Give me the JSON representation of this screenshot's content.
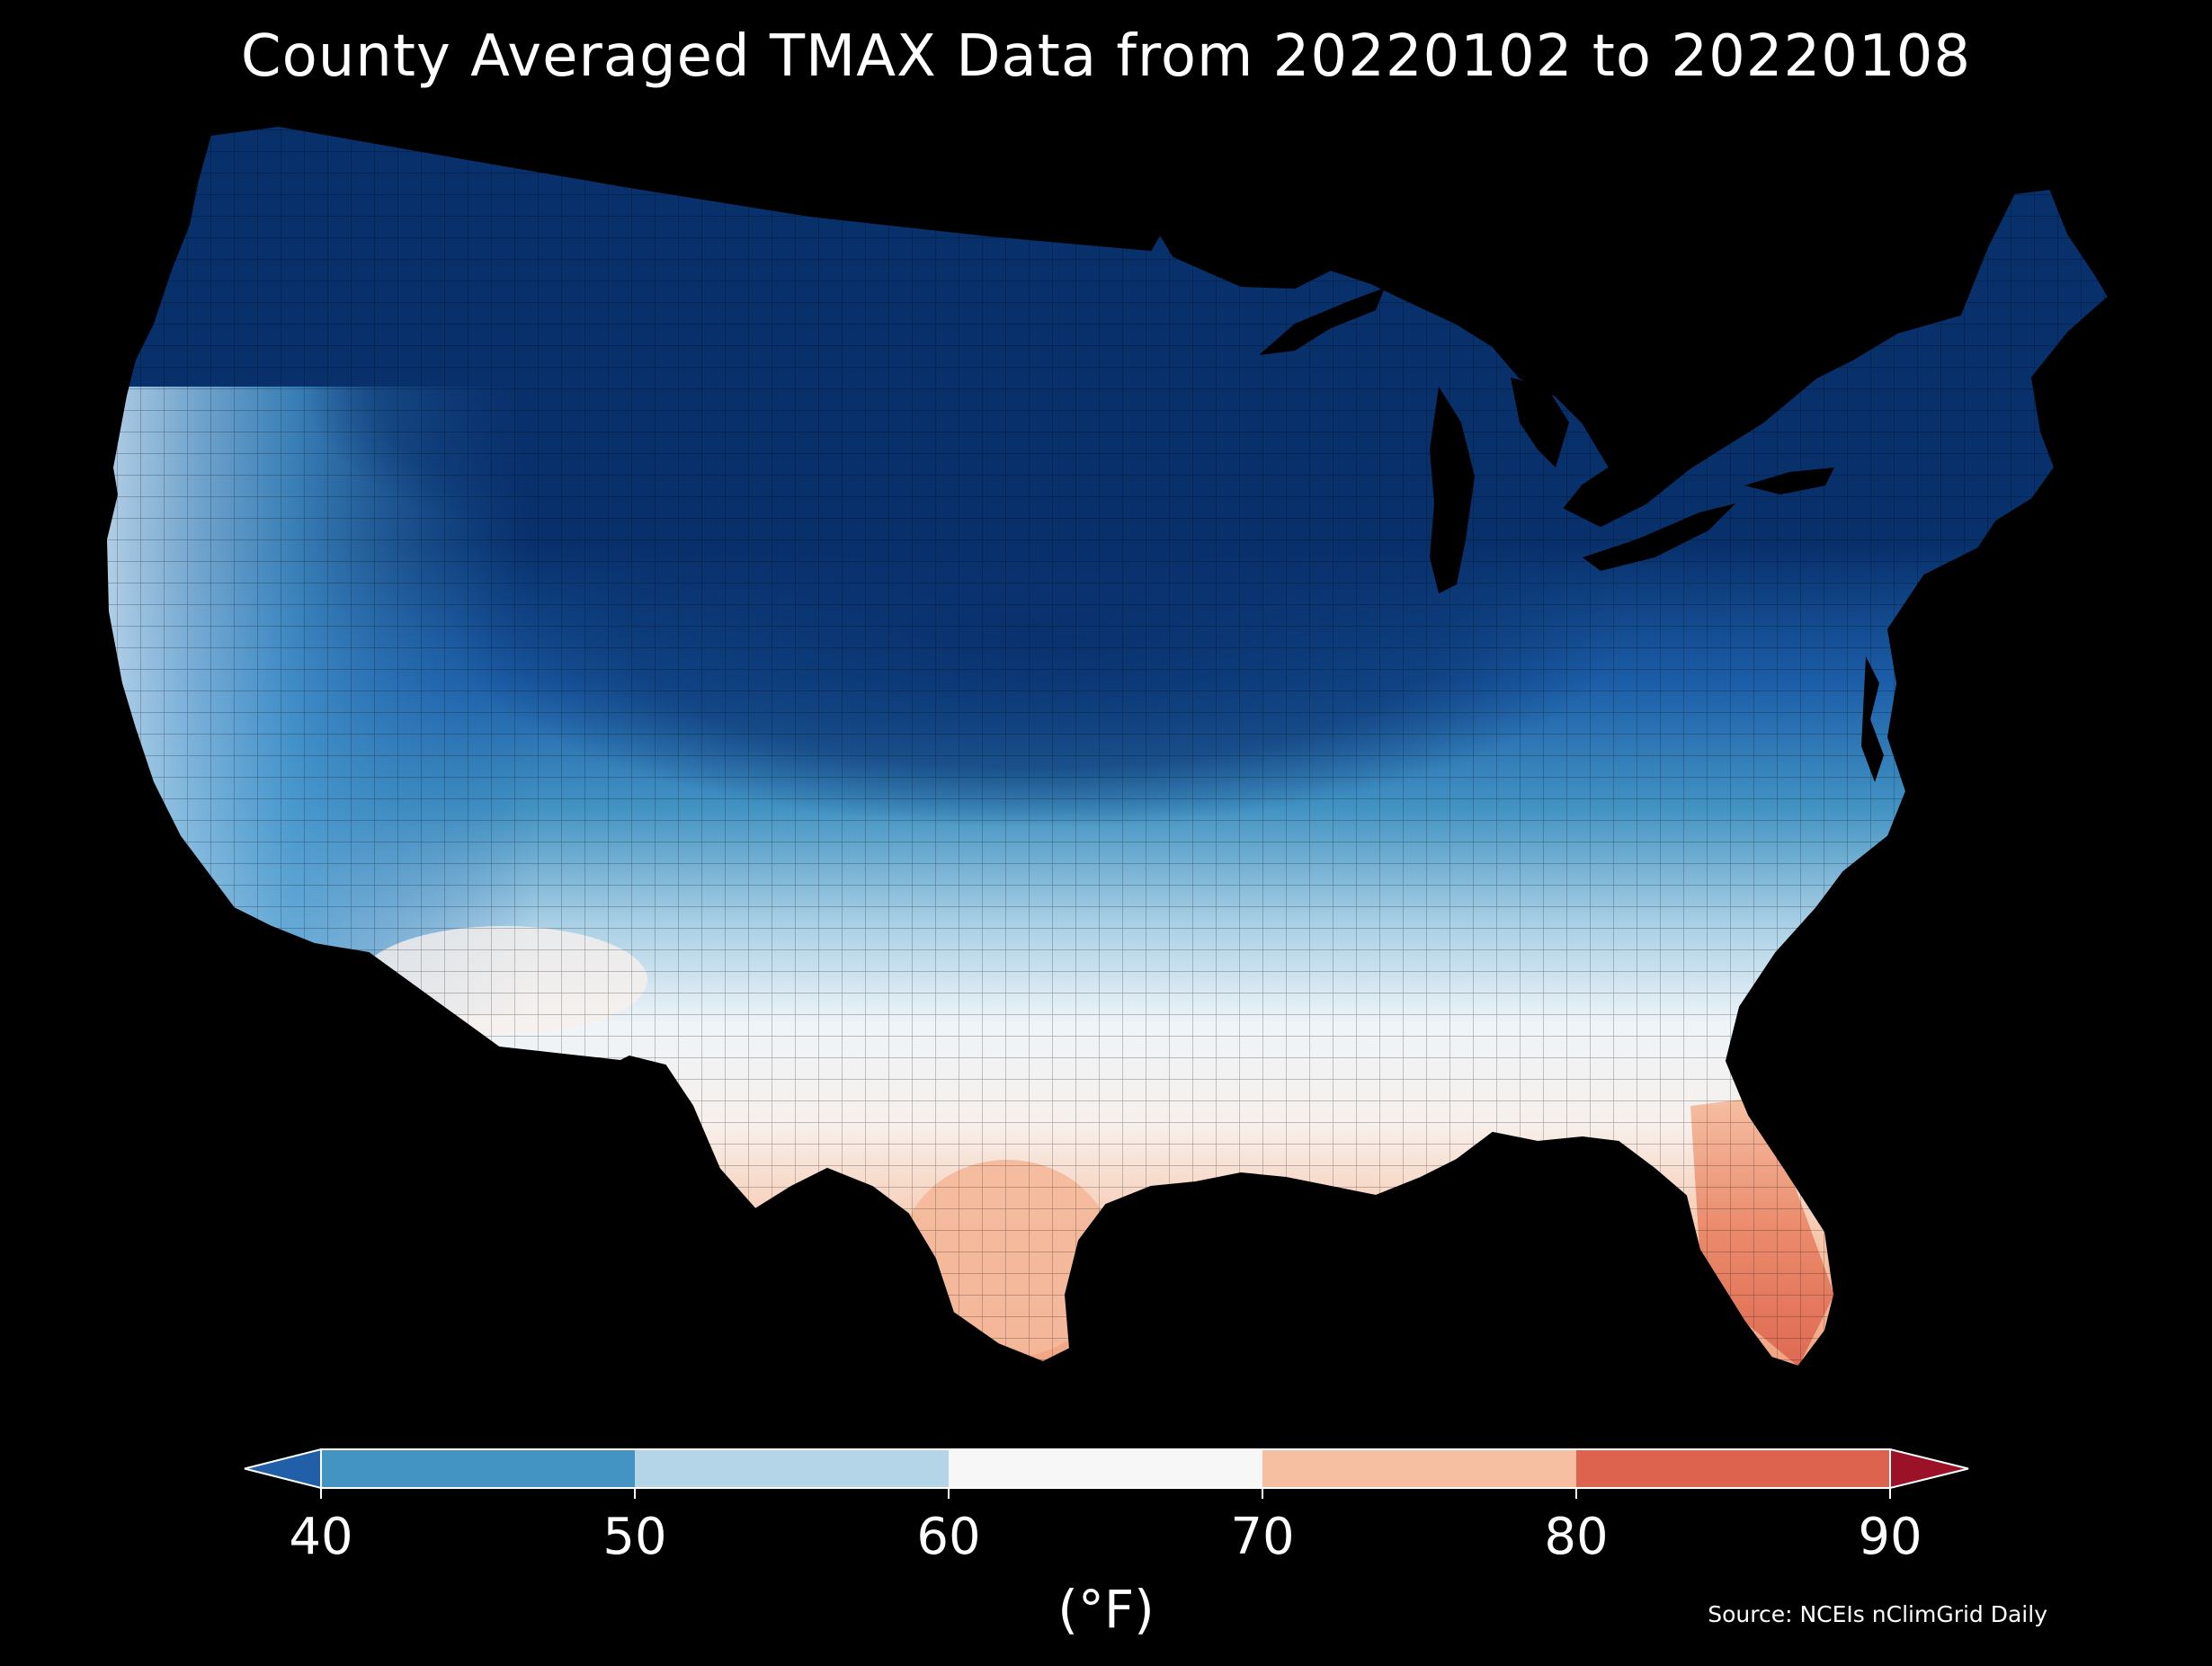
{
  "title": "County Averaged TMAX Data from 20220102 to 20220108",
  "source": "Source: NCEIs nClimGrid Daily",
  "colorbar": {
    "unit_label": "(°F)",
    "ticks": [
      "40",
      "50",
      "60",
      "70",
      "80",
      "90"
    ],
    "bins": [
      {
        "range": [
          40,
          50
        ],
        "color": "#4393c3"
      },
      {
        "range": [
          50,
          60
        ],
        "color": "#b4d5e8"
      },
      {
        "range": [
          60,
          70
        ],
        "color": "#f7f7f7"
      },
      {
        "range": [
          70,
          80
        ],
        "color": "#f7bfa2"
      },
      {
        "range": [
          80,
          90
        ],
        "color": "#dd634f"
      }
    ],
    "under_color": "#2160a8",
    "over_color": "#9b1127"
  },
  "legend_colors": {
    "coldest": "#08306b",
    "cold": "#2166ac",
    "cool": "#4393c3",
    "mild": "#92c5de",
    "neutral": "#f7f7f7",
    "warm": "#f4a582",
    "hot": "#d6604d"
  },
  "map_region": "Contiguous United States counties"
}
